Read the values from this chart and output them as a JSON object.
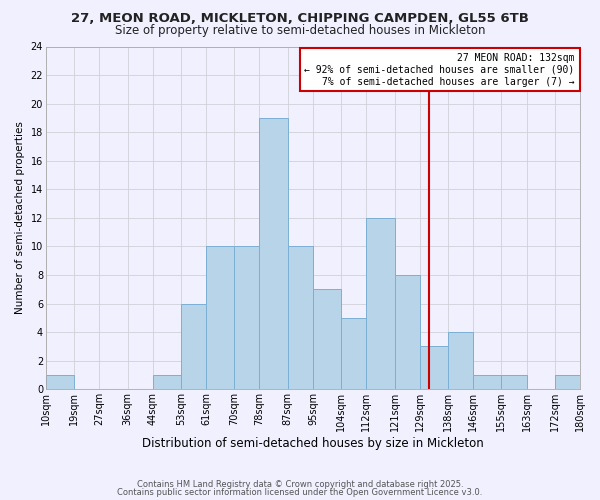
{
  "title1": "27, MEON ROAD, MICKLETON, CHIPPING CAMPDEN, GL55 6TB",
  "title2": "Size of property relative to semi-detached houses in Mickleton",
  "xlabel": "Distribution of semi-detached houses by size in Mickleton",
  "ylabel": "Number of semi-detached properties",
  "bin_edges": [
    10,
    19,
    27,
    36,
    44,
    53,
    61,
    70,
    78,
    87,
    95,
    104,
    112,
    121,
    129,
    138,
    146,
    155,
    163,
    172,
    180
  ],
  "counts": [
    1,
    0,
    0,
    0,
    1,
    6,
    10,
    10,
    19,
    10,
    7,
    5,
    12,
    8,
    3,
    4,
    1,
    1,
    0,
    1
  ],
  "bar_color": "#b8d4e8",
  "bar_edge_color": "#7bafd4",
  "background_color": "#f0f0ff",
  "grid_color": "#d0d0d8",
  "vline_x": 132,
  "vline_color": "#cc0000",
  "annotation_title": "27 MEON ROAD: 132sqm",
  "annotation_line1": "← 92% of semi-detached houses are smaller (90)",
  "annotation_line2": "7% of semi-detached houses are larger (7) →",
  "annotation_box_color": "#cc0000",
  "ylim": [
    0,
    24
  ],
  "yticks": [
    0,
    2,
    4,
    6,
    8,
    10,
    12,
    14,
    16,
    18,
    20,
    22,
    24
  ],
  "tick_labels": [
    "10sqm",
    "19sqm",
    "27sqm",
    "36sqm",
    "44sqm",
    "53sqm",
    "61sqm",
    "70sqm",
    "78sqm",
    "87sqm",
    "95sqm",
    "104sqm",
    "112sqm",
    "121sqm",
    "129sqm",
    "138sqm",
    "146sqm",
    "155sqm",
    "163sqm",
    "172sqm",
    "180sqm"
  ],
  "footnote1": "Contains HM Land Registry data © Crown copyright and database right 2025.",
  "footnote2": "Contains public sector information licensed under the Open Government Licence v3.0.",
  "title1_fontsize": 9.5,
  "title2_fontsize": 8.5,
  "xlabel_fontsize": 8.5,
  "ylabel_fontsize": 7.5,
  "tick_fontsize": 7,
  "annot_fontsize": 7,
  "footnote_fontsize": 6
}
